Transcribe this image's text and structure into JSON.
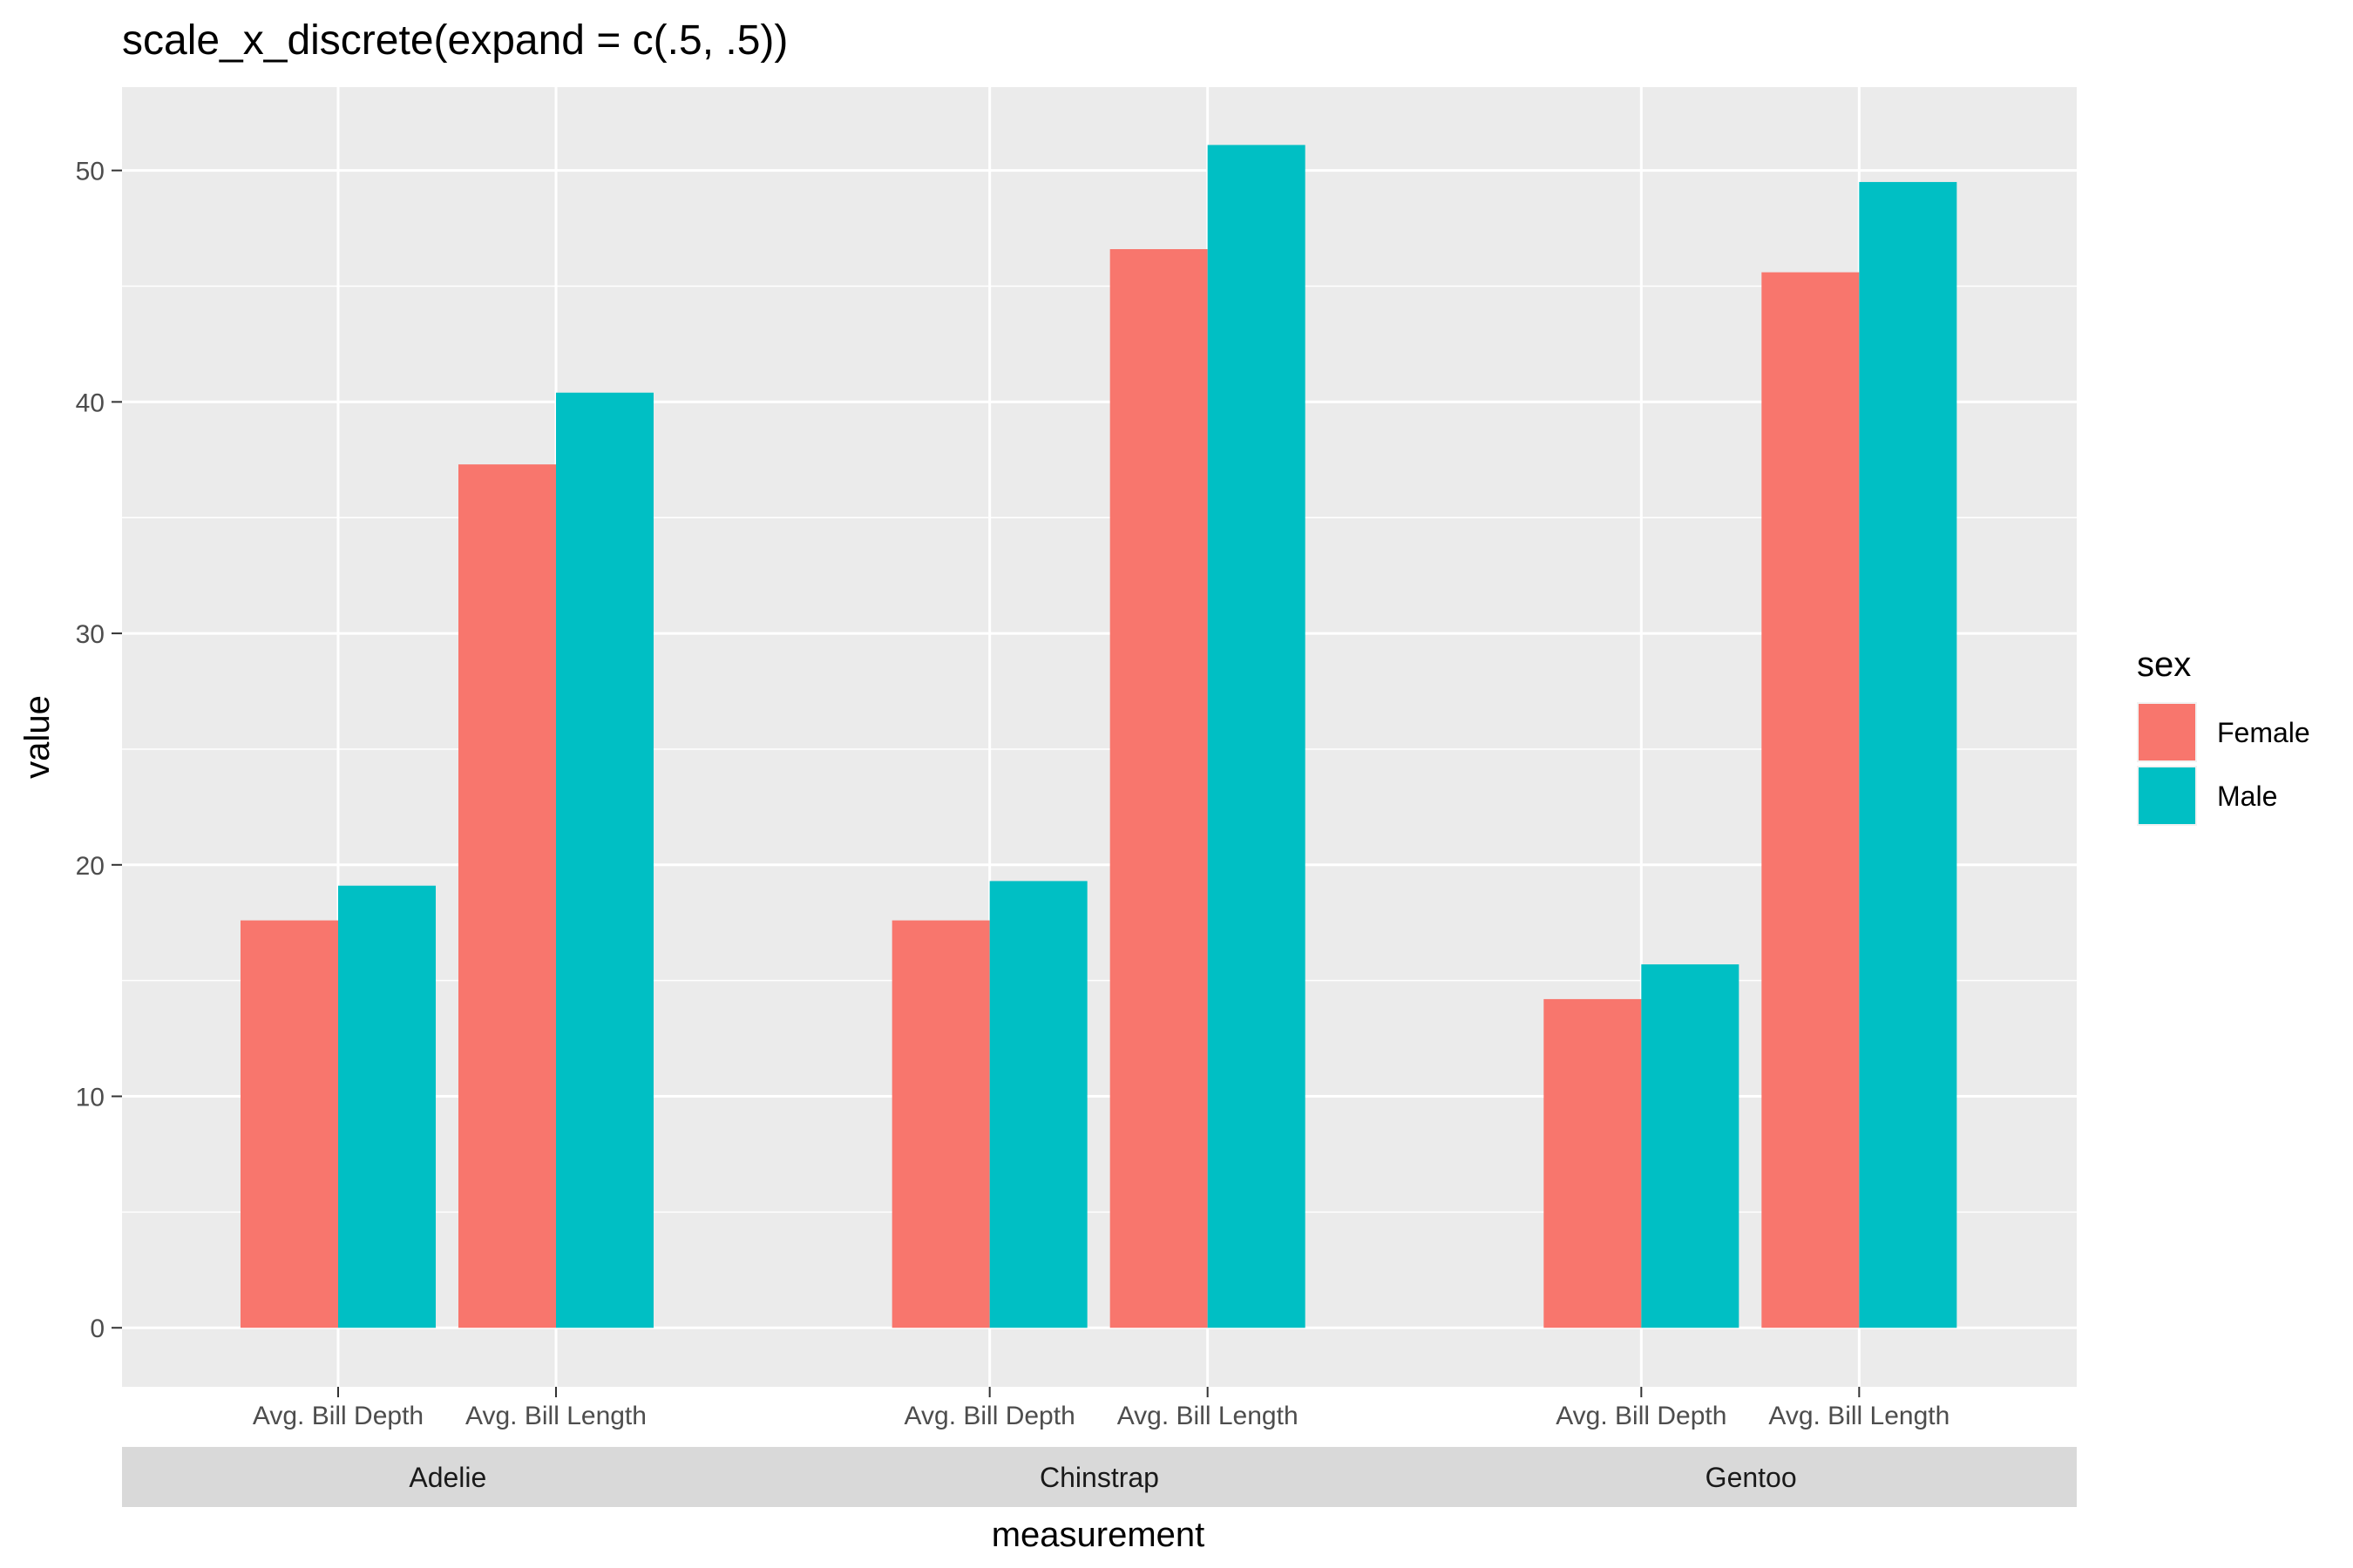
{
  "chart_data": {
    "type": "bar",
    "title": "scale_x_discrete(expand = c(.5, .5))",
    "xlabel": "measurement",
    "ylabel": "value",
    "ylim": [
      -2.55,
      53.6
    ],
    "y_ticks": [
      0,
      10,
      20,
      30,
      40,
      50
    ],
    "grid": true,
    "facets": [
      "Adelie",
      "Chinstrap",
      "Gentoo"
    ],
    "categories": [
      "Avg. Bill Depth",
      "Avg. Bill Length"
    ],
    "series": [
      {
        "name": "Female",
        "color": "#F8766D",
        "values": {
          "Adelie": [
            17.6,
            37.3
          ],
          "Chinstrap": [
            17.6,
            46.6
          ],
          "Gentoo": [
            14.2,
            45.6
          ]
        }
      },
      {
        "name": "Male",
        "color": "#00BFC4",
        "values": {
          "Adelie": [
            19.1,
            40.4
          ],
          "Chinstrap": [
            19.3,
            51.1
          ],
          "Gentoo": [
            15.7,
            49.5
          ]
        }
      }
    ],
    "legend": {
      "title": "sex",
      "position": "right"
    }
  }
}
